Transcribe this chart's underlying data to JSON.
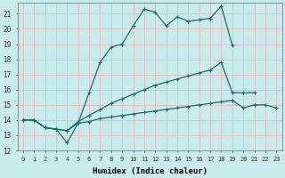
{
  "xlabel": "Humidex (Indice chaleur)",
  "bg_color": "#c8ecec",
  "grid_color": "#e8b8b8",
  "line_color": "#1a6b6b",
  "xlim": [
    -0.5,
    23.5
  ],
  "ylim": [
    12,
    21.7
  ],
  "yticks": [
    12,
    13,
    14,
    15,
    16,
    17,
    18,
    19,
    20,
    21
  ],
  "xticks": [
    0,
    1,
    2,
    3,
    4,
    5,
    6,
    7,
    8,
    9,
    10,
    11,
    12,
    13,
    14,
    15,
    16,
    17,
    18,
    19,
    20,
    21,
    22,
    23
  ],
  "line1_x": [
    0,
    1,
    2,
    3,
    4,
    5,
    6,
    7,
    8,
    9,
    10,
    11,
    12,
    13,
    14,
    15,
    16,
    17,
    18,
    19
  ],
  "line1_y": [
    14.0,
    14.0,
    13.5,
    13.4,
    12.5,
    13.8,
    15.8,
    17.8,
    18.8,
    19.0,
    20.2,
    21.3,
    21.1,
    20.2,
    20.8,
    20.5,
    20.6,
    20.7,
    21.5,
    18.9
  ],
  "line2_x": [
    0,
    1,
    2,
    3,
    4,
    5,
    6,
    7,
    8,
    9,
    10,
    11,
    12,
    13,
    14,
    15,
    16,
    17,
    18,
    19,
    20,
    21
  ],
  "line2_y": [
    14.0,
    14.0,
    13.5,
    13.4,
    13.3,
    13.9,
    14.3,
    14.7,
    15.1,
    15.4,
    15.7,
    16.0,
    16.3,
    16.5,
    16.7,
    16.9,
    17.1,
    17.3,
    17.8,
    15.8,
    15.8,
    15.8
  ],
  "line3_x": [
    0,
    1,
    2,
    3,
    4,
    5,
    6,
    7,
    8,
    9,
    10,
    11,
    12,
    13,
    14,
    15,
    16,
    17,
    18,
    19,
    20,
    21,
    22,
    23
  ],
  "line3_y": [
    14.0,
    14.0,
    13.5,
    13.4,
    13.3,
    13.8,
    13.9,
    14.1,
    14.2,
    14.3,
    14.4,
    14.5,
    14.6,
    14.7,
    14.8,
    14.9,
    15.0,
    15.1,
    15.2,
    15.3,
    14.8,
    15.0,
    15.0,
    14.8
  ]
}
